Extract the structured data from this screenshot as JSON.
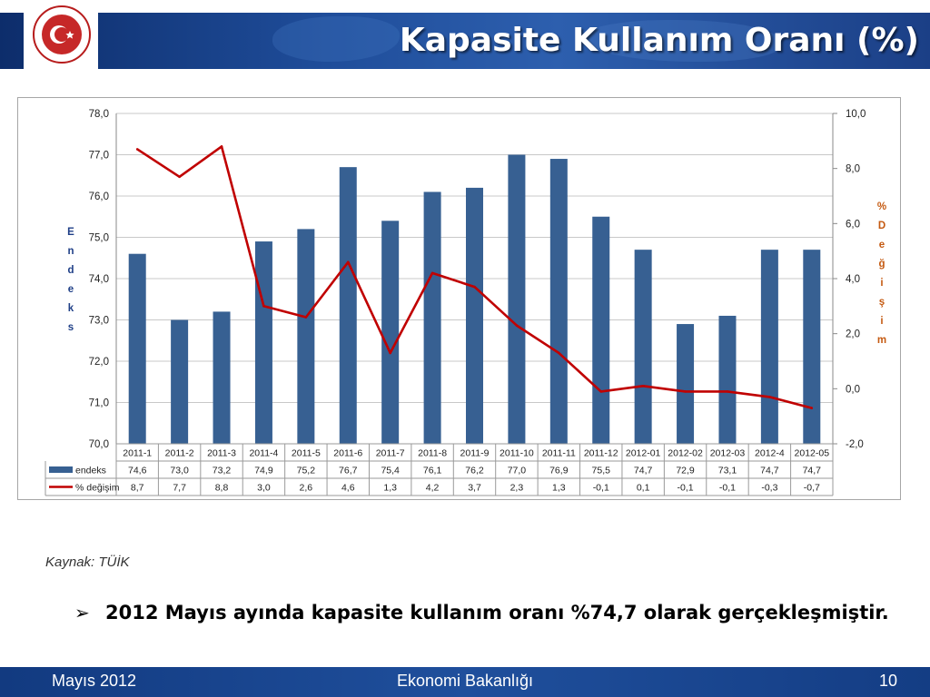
{
  "header": {
    "title": "Kapasite Kullanım Oranı (%)",
    "logo_text": "TÜRKİYE CUMHURİYETİ EKONOMİ BAKANLIĞI"
  },
  "chart_data": {
    "type": "bar",
    "categories": [
      "2011-1",
      "2011-2",
      "2011-3",
      "2011-4",
      "2011-5",
      "2011-6",
      "2011-7",
      "2011-8",
      "2011-9",
      "2011-10",
      "2011-11",
      "2011-12",
      "2012-01",
      "2012-02",
      "2012-03",
      "2012-4",
      "2012-05"
    ],
    "series": [
      {
        "name": "endeks",
        "type": "bar",
        "axis": "left",
        "color": "#376092",
        "values": [
          74.6,
          73.0,
          73.2,
          74.9,
          75.2,
          76.7,
          75.4,
          76.1,
          76.2,
          77.0,
          76.9,
          75.5,
          74.7,
          72.9,
          73.1,
          74.7,
          74.7
        ],
        "labels": [
          "74,6",
          "73,0",
          "73,2",
          "74,9",
          "75,2",
          "76,7",
          "75,4",
          "76,1",
          "76,2",
          "77,0",
          "76,9",
          "75,5",
          "74,7",
          "72,9",
          "73,1",
          "74,7",
          "74,7"
        ]
      },
      {
        "name": "% değişim",
        "type": "line",
        "axis": "right",
        "color": "#c00000",
        "values": [
          8.7,
          7.7,
          8.8,
          3.0,
          2.6,
          4.6,
          1.3,
          4.2,
          3.7,
          2.3,
          1.3,
          -0.1,
          0.1,
          -0.1,
          -0.1,
          -0.3,
          -0.7
        ],
        "labels": [
          "8,7",
          "7,7",
          "8,8",
          "3,0",
          "2,6",
          "4,6",
          "1,3",
          "4,2",
          "3,7",
          "2,3",
          "1,3",
          "-0,1",
          "0,1",
          "-0,1",
          "-0,1",
          "-0,3",
          "-0,7"
        ]
      }
    ],
    "y_left": {
      "label": "Endeks",
      "ylim": [
        70,
        78
      ],
      "ticks": [
        "78,0",
        "77,0",
        "76,0",
        "75,0",
        "74,0",
        "73,0",
        "72,0",
        "71,0",
        "70,0"
      ]
    },
    "y_right": {
      "label": "% Değişim",
      "ylim": [
        -2,
        10
      ],
      "ticks": [
        "10,0",
        "8,0",
        "6,0",
        "4,0",
        "2,0",
        "0,0",
        "-2,0"
      ]
    },
    "grid": true,
    "data_table": true
  },
  "source_note": "Kaynak: TÜİK",
  "bullet": {
    "marker": "➢",
    "text": "2012 Mayıs ayında kapasite kullanım oranı %74,7 olarak gerçekleşmiştir."
  },
  "footer": {
    "date": "Mayıs 2012",
    "ministry": "Ekonomi Bakanlığı",
    "page": "10"
  }
}
